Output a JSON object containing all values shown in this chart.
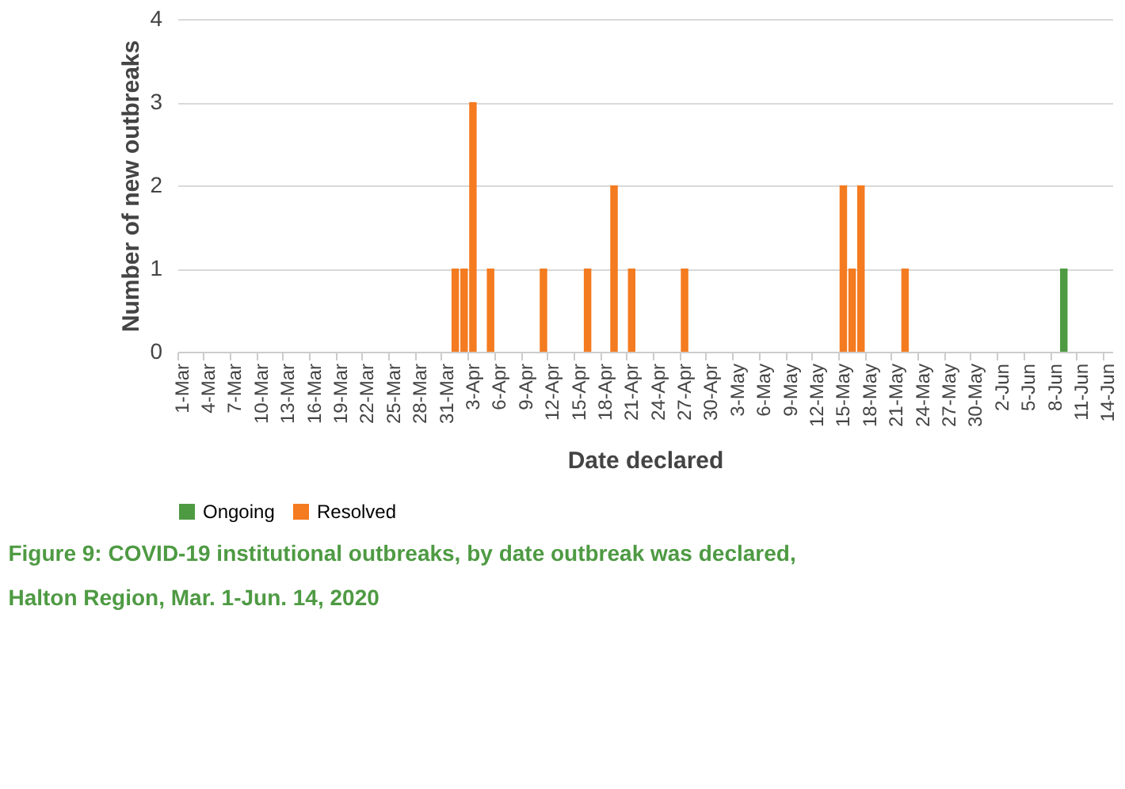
{
  "chart_data": {
    "type": "bar",
    "xlabel": "Date declared",
    "ylabel": "Number of new outbreaks",
    "categories": [
      "1-Mar",
      null,
      null,
      "4-Mar",
      null,
      null,
      "7-Mar",
      null,
      null,
      "10-Mar",
      null,
      null,
      "13-Mar",
      null,
      null,
      "16-Mar",
      null,
      null,
      "19-Mar",
      null,
      null,
      "22-Mar",
      null,
      null,
      "25-Mar",
      null,
      null,
      "28-Mar",
      null,
      null,
      "31-Mar",
      null,
      null,
      "3-Apr",
      null,
      null,
      "6-Apr",
      null,
      null,
      "9-Apr",
      null,
      null,
      "12-Apr",
      null,
      null,
      "15-Apr",
      null,
      null,
      "18-Apr",
      null,
      null,
      "21-Apr",
      null,
      null,
      "24-Apr",
      null,
      null,
      "27-Apr",
      null,
      null,
      "30-Apr",
      null,
      null,
      "3-May",
      null,
      null,
      "6-May",
      null,
      null,
      "9-May",
      null,
      null,
      "12-May",
      null,
      null,
      "15-May",
      null,
      null,
      "18-May",
      null,
      null,
      "21-May",
      null,
      null,
      "24-May",
      null,
      null,
      "27-May",
      null,
      null,
      "30-May",
      null,
      null,
      "2-Jun",
      null,
      null,
      "5-Jun",
      null,
      null,
      "8-Jun",
      null,
      null,
      "11-Jun",
      null,
      null,
      "14-Jun"
    ],
    "series": [
      {
        "name": "Ongoing",
        "color": "#4e9a43",
        "values": [
          0,
          0,
          0,
          0,
          0,
          0,
          0,
          0,
          0,
          0,
          0,
          0,
          0,
          0,
          0,
          0,
          0,
          0,
          0,
          0,
          0,
          0,
          0,
          0,
          0,
          0,
          0,
          0,
          0,
          0,
          0,
          0,
          0,
          0,
          0,
          0,
          0,
          0,
          0,
          0,
          0,
          0,
          0,
          0,
          0,
          0,
          0,
          0,
          0,
          0,
          0,
          0,
          0,
          0,
          0,
          0,
          0,
          0,
          0,
          0,
          0,
          0,
          0,
          0,
          0,
          0,
          0,
          0,
          0,
          0,
          0,
          0,
          0,
          0,
          0,
          0,
          0,
          0,
          0,
          0,
          0,
          0,
          0,
          0,
          0,
          0,
          0,
          0,
          0,
          0,
          0,
          0,
          0,
          0,
          0,
          0,
          0,
          0,
          0,
          0,
          1,
          0,
          0,
          0,
          0,
          0
        ]
      },
      {
        "name": "Resolved",
        "color": "#f47b20",
        "values": [
          0,
          0,
          0,
          0,
          0,
          0,
          0,
          0,
          0,
          0,
          0,
          0,
          0,
          0,
          0,
          0,
          0,
          0,
          0,
          0,
          0,
          0,
          0,
          0,
          0,
          0,
          0,
          0,
          0,
          0,
          0,
          1,
          1,
          3,
          0,
          1,
          0,
          0,
          0,
          0,
          0,
          1,
          0,
          0,
          0,
          0,
          1,
          0,
          0,
          2,
          0,
          1,
          0,
          0,
          0,
          0,
          0,
          1,
          0,
          0,
          0,
          0,
          0,
          0,
          0,
          0,
          0,
          0,
          0,
          0,
          0,
          0,
          0,
          0,
          0,
          2,
          1,
          2,
          0,
          0,
          0,
          0,
          1,
          0,
          0,
          0,
          0,
          0,
          0,
          0,
          0,
          0,
          0,
          0,
          0,
          0,
          0,
          0,
          0,
          0,
          0,
          0,
          0,
          0,
          0,
          0
        ]
      }
    ],
    "ylim": [
      0,
      4
    ],
    "yticks": [
      0,
      1,
      2,
      3,
      4
    ],
    "grid": "y",
    "legend": "bottom",
    "annotations": [
      "Figure 9: COVID-19 institutional outbreaks, by date outbreak was declared, Halton Region, Mar. 1-Jun. 14, 2020"
    ]
  }
}
